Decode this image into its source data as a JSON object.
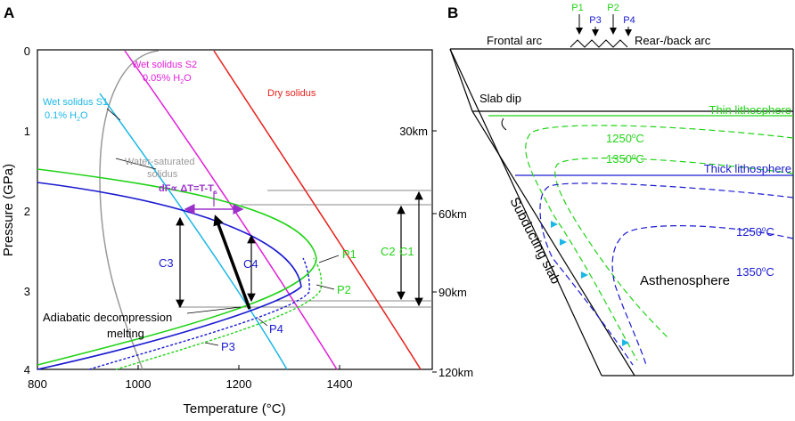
{
  "panel_a": {
    "label": "A",
    "x_axis_label": "Temperature (°C)",
    "y_axis_label": "Pressure (GPa)",
    "x_ticks": [
      "800",
      "1000",
      "1200",
      "1400"
    ],
    "y_ticks": [
      "0",
      "1",
      "2",
      "3",
      "4"
    ],
    "depth_ticks": [
      "30km",
      "60km",
      "90km",
      "120km"
    ],
    "curve_labels": {
      "dry": "Dry solidus",
      "wet_s2": "Wet solidus S2",
      "wet_s2_water": "0.05% H",
      "wet_s2_water_tail": "O",
      "wet_s1": "Wet solidus S1",
      "wet_s1_water": "0.1% H",
      "wet_s1_water_tail": "O",
      "water_saturated": "Water-saturated",
      "water_saturated_2": "solidus",
      "df": "dF∝ ΔT=T-T",
      "df_sub": "s",
      "adiabatic": "Adiabatic decompression",
      "adiabatic_2": "melting"
    },
    "markers": {
      "c1": "C1",
      "c2": "C2",
      "c3": "C3",
      "c4": "C4",
      "p1": "P1",
      "p2": "P2",
      "p3": "P3",
      "p4": "P4"
    }
  },
  "panel_b": {
    "label": "B",
    "frontal_arc": "Frontal arc",
    "rear_arc": "Rear-/back arc",
    "profiles": [
      "P1",
      "P2",
      "P3",
      "P4"
    ],
    "slab_dip": "Slab dip",
    "thin_lithosphere": "Thin lithosphere",
    "thick_lithosphere": "Thick lithosphere",
    "iso_green_1": "1250",
    "iso_green_2": "1350",
    "iso_blue_1": "1250",
    "iso_blue_2": "1350",
    "deg": "o",
    "unit": "C",
    "subducting_slab": "Subducting slab",
    "asthenosphere": "Asthenosphere"
  }
}
